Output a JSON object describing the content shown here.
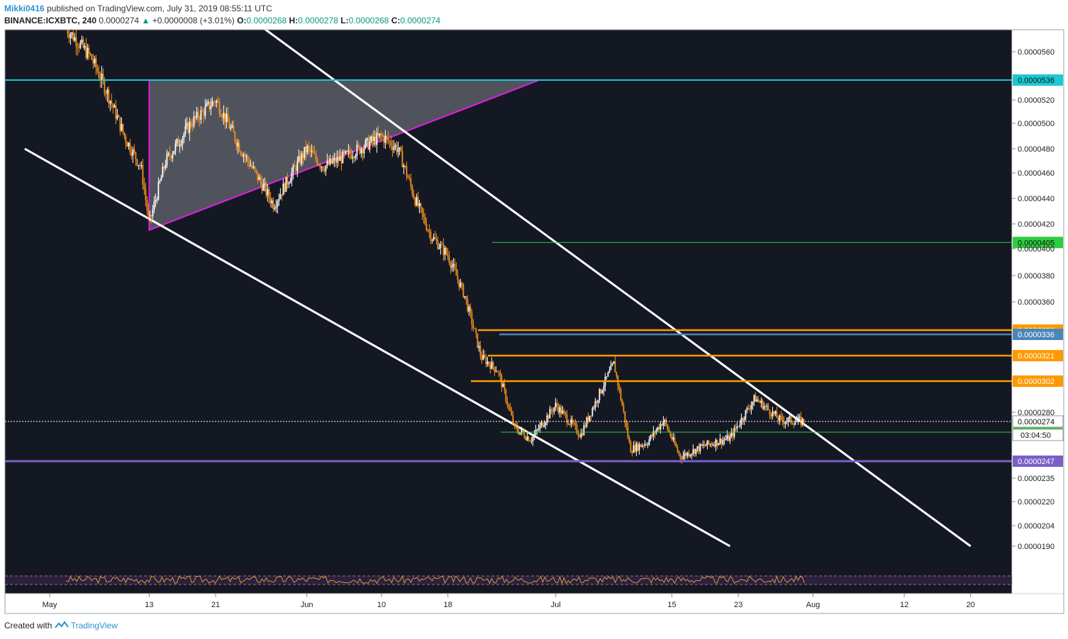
{
  "header": {
    "author": "Mikki0416",
    "published_text": "published on TradingView.com, July 31, 2019 08:55:11 UTC",
    "symbol": "BINANCE:ICXBTC, 240",
    "last": "0.0000274",
    "change_arrow": "▲",
    "change": "+0.0000008 (+3.01%)",
    "o_label": "O:",
    "o_value": "0.0000268",
    "h_label": "H:",
    "h_value": "0.0000278",
    "l_label": "L:",
    "l_value": "0.0000268",
    "c_label": "C:",
    "c_value": "0.0000274"
  },
  "footer": {
    "created_with": "Created with",
    "brand": "TradingView"
  },
  "colors": {
    "background": "#141823",
    "candle": "#f7931a",
    "wick": "#ffffff",
    "triangle_fill": "#5b5e66",
    "triangle_edge": "#e020e0",
    "channel": "#ffffff",
    "cyan": "#1cc8d2",
    "green": "#2ecc40",
    "orange": "#ff9900",
    "steelblue": "#4a86b8",
    "purple": "#7a5fc8"
  },
  "chart_data": {
    "type": "candlestick",
    "symbol": "BINANCE:ICXBTC",
    "interval": "240",
    "x_ticks": [
      {
        "label": "May",
        "date": "2019-05-01"
      },
      {
        "label": "13",
        "date": "2019-05-13"
      },
      {
        "label": "21",
        "date": "2019-05-21"
      },
      {
        "label": "Jun",
        "date": "2019-06-01"
      },
      {
        "label": "10",
        "date": "2019-06-10"
      },
      {
        "label": "18",
        "date": "2019-06-18"
      },
      {
        "label": "Jul",
        "date": "2019-07-01"
      },
      {
        "label": "15",
        "date": "2019-07-15"
      },
      {
        "label": "23",
        "date": "2019-07-23"
      },
      {
        "label": "Aug",
        "date": "2019-08-01"
      },
      {
        "label": "12",
        "date": "2019-08-12"
      },
      {
        "label": "20",
        "date": "2019-08-20"
      }
    ],
    "y_ticks": [
      "0.0000560",
      "0.0000520",
      "0.0000500",
      "0.0000480",
      "0.0000460",
      "0.0000440",
      "0.0000420",
      "0.0000400",
      "0.0000380",
      "0.0000360",
      "0.0000280",
      "0.0000235",
      "0.0000220",
      "0.0000204",
      "0.0000190"
    ],
    "price_series": [
      {
        "date": "2019-05-03",
        "close": 5.8e-05
      },
      {
        "date": "2019-05-06",
        "close": 5.55e-05
      },
      {
        "date": "2019-05-08",
        "close": 5.25e-05
      },
      {
        "date": "2019-05-10",
        "close": 4.9e-05
      },
      {
        "date": "2019-05-12",
        "close": 4.65e-05
      },
      {
        "date": "2019-05-13",
        "close": 4.2e-05
      },
      {
        "date": "2019-05-15",
        "close": 4.7e-05
      },
      {
        "date": "2019-05-18",
        "close": 5e-05
      },
      {
        "date": "2019-05-21",
        "close": 5.2e-05
      },
      {
        "date": "2019-05-24",
        "close": 4.8e-05
      },
      {
        "date": "2019-05-28",
        "close": 4.35e-05
      },
      {
        "date": "2019-06-01",
        "close": 4.8e-05
      },
      {
        "date": "2019-06-03",
        "close": 4.65e-05
      },
      {
        "date": "2019-06-06",
        "close": 4.75e-05
      },
      {
        "date": "2019-06-10",
        "close": 4.9e-05
      },
      {
        "date": "2019-06-12",
        "close": 4.8e-05
      },
      {
        "date": "2019-06-14",
        "close": 4.4e-05
      },
      {
        "date": "2019-06-16",
        "close": 4.1e-05
      },
      {
        "date": "2019-06-18",
        "close": 3.95e-05
      },
      {
        "date": "2019-06-20",
        "close": 3.65e-05
      },
      {
        "date": "2019-06-22",
        "close": 3.2e-05
      },
      {
        "date": "2019-06-24",
        "close": 3.1e-05
      },
      {
        "date": "2019-06-26",
        "close": 2.7e-05
      },
      {
        "date": "2019-06-28",
        "close": 2.62e-05
      },
      {
        "date": "2019-07-01",
        "close": 2.85e-05
      },
      {
        "date": "2019-07-04",
        "close": 2.65e-05
      },
      {
        "date": "2019-07-08",
        "close": 3.15e-05
      },
      {
        "date": "2019-07-10",
        "close": 2.55e-05
      },
      {
        "date": "2019-07-12",
        "close": 2.6e-05
      },
      {
        "date": "2019-07-14",
        "close": 2.75e-05
      },
      {
        "date": "2019-07-16",
        "close": 2.5e-05
      },
      {
        "date": "2019-07-19",
        "close": 2.58e-05
      },
      {
        "date": "2019-07-22",
        "close": 2.63e-05
      },
      {
        "date": "2019-07-25",
        "close": 2.9e-05
      },
      {
        "date": "2019-07-28",
        "close": 2.75e-05
      },
      {
        "date": "2019-07-31",
        "close": 2.74e-05
      }
    ],
    "horizontal_levels": [
      {
        "label": "0.0000536",
        "value": 5.36e-05,
        "color": "#1cc8d2"
      },
      {
        "label": "0.0000405",
        "value": 4.05e-05,
        "color": "#2ecc40"
      },
      {
        "label": "0.0000339",
        "value": 3.39e-05,
        "color": "#ff9900"
      },
      {
        "label": "0.0000336",
        "value": 3.36e-05,
        "color": "#4a86b8"
      },
      {
        "label": "0.0000321",
        "value": 3.21e-05,
        "color": "#ff9900"
      },
      {
        "label": "0.0000302",
        "value": 3.02e-05,
        "color": "#ff9900"
      },
      {
        "label": "0.0000267",
        "value": 2.67e-05,
        "color": "#2ecc40"
      },
      {
        "label": "0.0000247",
        "value": 2.47e-05,
        "color": "#7a5fc8"
      }
    ],
    "current_price": {
      "label": "0.0000274",
      "value": 2.74e-05
    },
    "countdown": "03:04:50",
    "triangle": [
      {
        "date": "2019-05-13",
        "price": 5.36e-05
      },
      {
        "date": "2019-06-29",
        "price": 5.36e-05
      },
      {
        "date": "2019-05-13",
        "price": 4.15e-05
      }
    ],
    "channel_lines": [
      {
        "from": {
          "date": "2019-05-19",
          "price": 6.2e-05
        },
        "to": {
          "date": "2019-08-20",
          "price": 1.9e-05
        }
      },
      {
        "from": {
          "date": "2019-04-28",
          "price": 4.8e-05
        },
        "to": {
          "date": "2019-07-22",
          "price": 1.9e-05
        }
      }
    ],
    "oscillator": {
      "band_upper": 70,
      "band_lower": 30
    }
  }
}
